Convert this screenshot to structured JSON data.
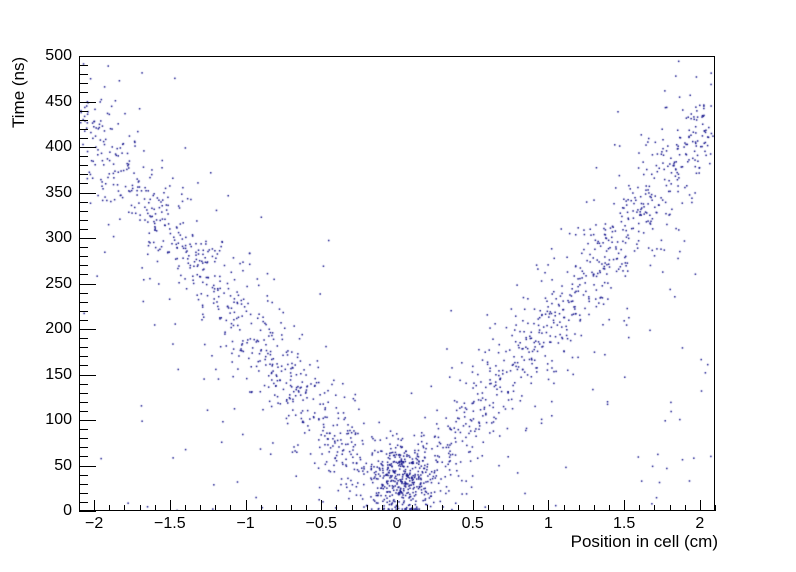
{
  "page": {
    "background": "#ffffff"
  },
  "chart_data": {
    "type": "scatter",
    "title": "",
    "xlabel": "Position in cell (cm)",
    "ylabel": "Time (ns)",
    "xlim": [
      -2.1,
      2.1
    ],
    "ylim": [
      0,
      500
    ],
    "grid": false,
    "legend": null,
    "marker_color": "#14148c",
    "marker_size_px": 1.5,
    "axis_color": "#000000",
    "x_major_ticks": [
      -2,
      -1.5,
      -1,
      -0.5,
      0,
      0.5,
      1,
      1.5,
      2
    ],
    "x_tick_labels": [
      "−2",
      "−1.5",
      "−1",
      "−0.5",
      "0",
      "0.5",
      "1",
      "1.5",
      "2"
    ],
    "x_minor_step": 0.1,
    "y_major_ticks": [
      0,
      50,
      100,
      150,
      200,
      250,
      300,
      350,
      400,
      450,
      500
    ],
    "y_tick_labels": [
      "0",
      "50",
      "100",
      "150",
      "200",
      "250",
      "300",
      "350",
      "400",
      "450",
      "500"
    ],
    "y_minor_step": 10,
    "distribution": {
      "description": "V-shaped drift-time vs position scatter: time rises roughly linearly with |x| from ~0 ns at cell center to ~440 ns at |x|=2.1 cm, with a dense cluster of hits near the cell center at low times and sparse background hits below the V band.",
      "seed": 987654321,
      "v_slope_ns_per_cm": 205,
      "x_min": -2.09,
      "x_max": 2.09,
      "t_min": 0.5,
      "t_max": 498,
      "components": [
        {
          "kind": "v_band",
          "n": 1250,
          "sigma_ns": 27
        },
        {
          "kind": "v_band",
          "n": 330,
          "sigma_ns": 65
        },
        {
          "kind": "cluster",
          "n": 330,
          "x_mean": 0.03,
          "x_sigma": 0.1,
          "x_low": -0.27,
          "x_high": 0.33,
          "t_mean": 38,
          "t_sigma": 22,
          "t_low": 2,
          "t_high": 103
        },
        {
          "kind": "background",
          "n": 150,
          "t_margin_ns": 80,
          "t_cap_ns": 465
        }
      ]
    }
  }
}
